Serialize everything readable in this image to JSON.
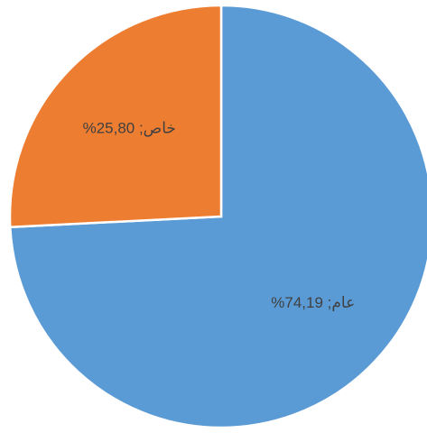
{
  "chart_data": {
    "type": "pie",
    "values": [
      74.19,
      25.8
    ],
    "value_labels": [
      "عام; 74,19%",
      "خاص; 25,80%"
    ],
    "colors": [
      "#5b9bd5",
      "#ed7d31"
    ]
  }
}
